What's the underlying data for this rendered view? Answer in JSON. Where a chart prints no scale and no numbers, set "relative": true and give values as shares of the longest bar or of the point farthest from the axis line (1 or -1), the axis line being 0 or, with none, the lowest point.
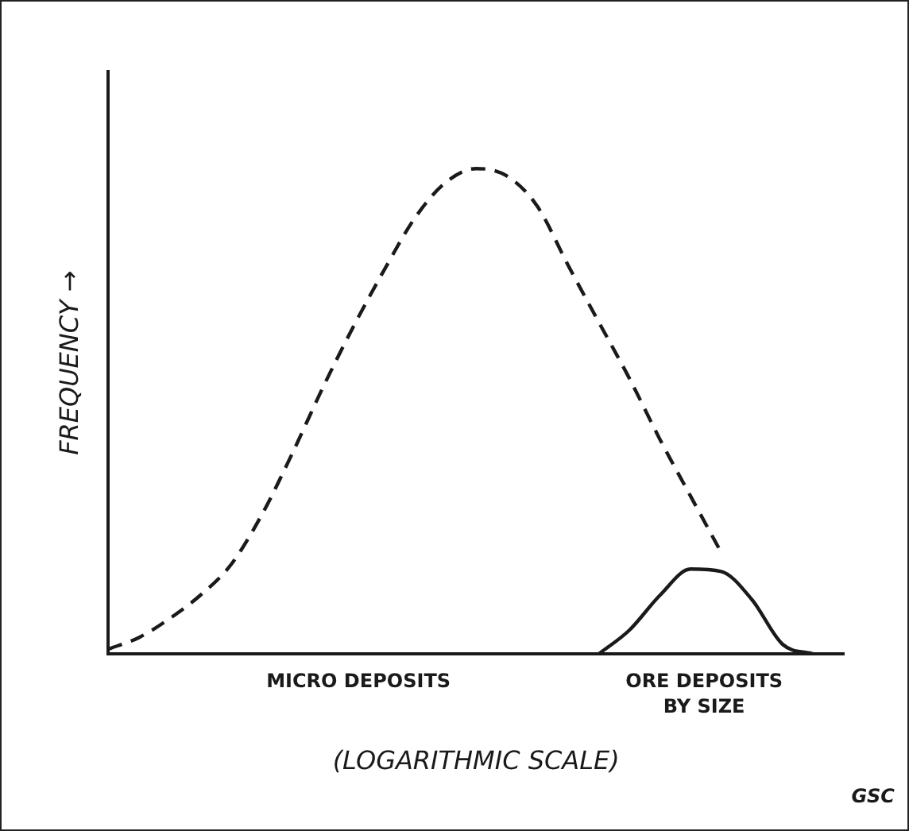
{
  "chart_data": {
    "type": "line",
    "relative": true,
    "ylabel": "FREQUENCY →",
    "xlabel": "(LOGARITHMIC SCALE)",
    "marker": "none",
    "legend": false,
    "categories": [
      null,
      null,
      null,
      null,
      null,
      null,
      null,
      null,
      null,
      null,
      null,
      null,
      null,
      null,
      null,
      null,
      null,
      null,
      null,
      null,
      null,
      null,
      null,
      null,
      null
    ],
    "series": [
      {
        "color": "#1a1a1a",
        "line_style": "dashed",
        "values": [
          0.01,
          0.034,
          0.073,
          0.121,
          0.184,
          0.286,
          0.413,
          0.549,
          0.675,
          0.791,
          0.898,
          0.971,
          1,
          0.985,
          0.922,
          0.801,
          0.684,
          0.568,
          0.442,
          0.325,
          0.209,
          null,
          null,
          null,
          null
        ]
      },
      {
        "color": "#1a1a1a",
        "line_style": "solid",
        "values": [
          null,
          null,
          null,
          null,
          null,
          null,
          null,
          null,
          null,
          null,
          null,
          null,
          null,
          null,
          null,
          null,
          0,
          0.049,
          0.121,
          0.175,
          0.17,
          0.112,
          0.02,
          0,
          null
        ]
      }
    ],
    "annotations": [
      "MICRO DEPOSITS",
      "ORE DEPOSITS BY SIZE",
      "GSC"
    ]
  }
}
